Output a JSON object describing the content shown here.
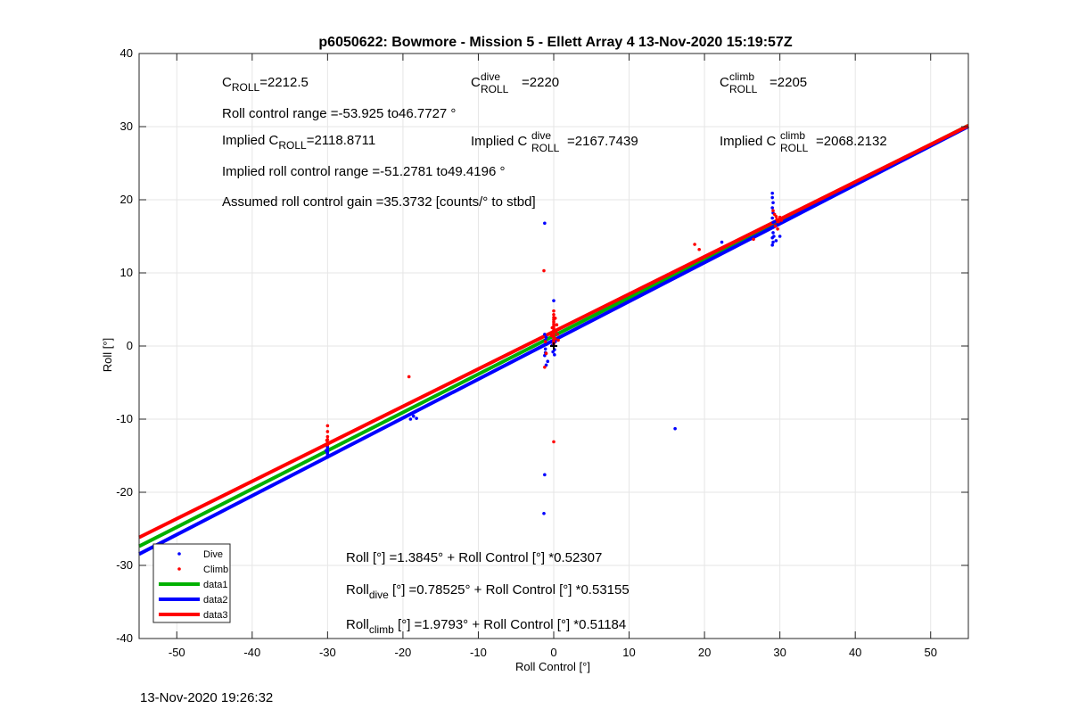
{
  "timestamp": "13-Nov-2020 19:26:32",
  "colors": {
    "dive": "#0000ff",
    "climb": "#ff0000",
    "data1": "#00b000",
    "data2": "#0000ff",
    "data3": "#ff0000",
    "grid": "#e6e6e6"
  },
  "annotations": {
    "c_roll": {
      "main": "C",
      "sub": "ROLL",
      "value": "=2212.5"
    },
    "c_roll_dive": {
      "main": "C",
      "sup": "dive",
      "sub": "ROLL",
      "value": "=2220"
    },
    "c_roll_climb": {
      "main": "C",
      "sup": "climb",
      "sub": "ROLL",
      "value": "=2205"
    },
    "roll_control_range": "Roll control range =-53.925 to46.7727 °",
    "implied_c_roll": {
      "prefix": "Implied C",
      "sub": "ROLL",
      "value": "=2118.8711"
    },
    "implied_c_roll_dive": {
      "prefix": "Implied C",
      "sup": "dive",
      "sub": "ROLL",
      "value": "=2167.7439"
    },
    "implied_c_roll_climb": {
      "prefix": "Implied C",
      "sup": "climb",
      "sub": "ROLL",
      "value": "=2068.2132"
    },
    "implied_range": "Implied roll control range =-51.2781 to49.4196 °",
    "gain": "Assumed roll control gain =35.3732 [counts/° to stbd]",
    "fit_all": "Roll [°] =1.3845° + Roll Control [°] *0.52307",
    "fit_dive": {
      "main": "Roll",
      "sub": "dive",
      "rest": " [°] =0.78525° + Roll Control [°] *0.53155"
    },
    "fit_climb": {
      "main": "Roll",
      "sub": "climb",
      "rest": " [°] =1.9793° + Roll Control [°] *0.51184"
    }
  },
  "chart_data": {
    "type": "scatter",
    "title": "p6050622: Bowmore - Mission 5 - Ellett Array 4 13-Nov-2020 15:19:57Z",
    "xlabel": "Roll Control [°]",
    "ylabel": "Roll [°]",
    "xlim": [
      -55,
      55
    ],
    "ylim": [
      -40,
      40
    ],
    "xticks": [
      -50,
      -40,
      -30,
      -20,
      -10,
      0,
      10,
      20,
      30,
      40,
      50
    ],
    "yticks": [
      -40,
      -30,
      -20,
      -10,
      0,
      10,
      20,
      30,
      40
    ],
    "grid": true,
    "legend_position": "bottom-left",
    "series": [
      {
        "name": "Dive",
        "kind": "points",
        "color": "#0000ff",
        "points": [
          [
            -30,
            -14.2
          ],
          [
            -30,
            -14.5
          ],
          [
            -30,
            -14.8
          ],
          [
            -30,
            -15.0
          ],
          [
            -30,
            -14.0
          ],
          [
            -30,
            -13.8
          ],
          [
            -30,
            -14.6
          ],
          [
            -30,
            -15.2
          ],
          [
            -30.2,
            -14.3
          ],
          [
            -19,
            -10.0
          ],
          [
            -18.2,
            -9.9
          ],
          [
            -18.6,
            -9.6
          ],
          [
            -1.2,
            16.8
          ],
          [
            -1.2,
            -17.6
          ],
          [
            -1.3,
            -22.9
          ],
          [
            -1.2,
            1.6
          ],
          [
            -1.1,
            0.8
          ],
          [
            -1.0,
            0.2
          ],
          [
            -1.1,
            -0.4
          ],
          [
            -1.2,
            -1.3
          ],
          [
            -1.0,
            -2.6
          ],
          [
            -0.8,
            -2.1
          ],
          [
            -1.1,
            -0.9
          ],
          [
            -1.0,
            1.2
          ],
          [
            0.0,
            6.2
          ],
          [
            0.1,
            -0.5
          ],
          [
            0.0,
            0.3
          ],
          [
            -0.1,
            -0.8
          ],
          [
            0.2,
            0.6
          ],
          [
            -0.2,
            0.1
          ],
          [
            0.1,
            -1.2
          ],
          [
            0.3,
            0.9
          ],
          [
            16.1,
            -11.3
          ],
          [
            22.3,
            14.2
          ],
          [
            29.0,
            20.9
          ],
          [
            29.0,
            20.3
          ],
          [
            29.1,
            19.6
          ],
          [
            29.0,
            18.9
          ],
          [
            29.1,
            18.2
          ],
          [
            29.0,
            17.5
          ],
          [
            29.1,
            16.9
          ],
          [
            29.0,
            16.2
          ],
          [
            29.1,
            15.5
          ],
          [
            29.0,
            14.8
          ],
          [
            29.1,
            14.2
          ],
          [
            29.0,
            13.8
          ],
          [
            29.2,
            15.0
          ],
          [
            29.3,
            17.0
          ],
          [
            29.5,
            14.4
          ],
          [
            30.0,
            15.0
          ]
        ]
      },
      {
        "name": "Climb",
        "kind": "points",
        "color": "#ff0000",
        "points": [
          [
            -30,
            -10.9
          ],
          [
            -30,
            -11.7
          ],
          [
            -30,
            -12.4
          ],
          [
            -30,
            -12.8
          ],
          [
            -30,
            -13.2
          ],
          [
            -30,
            -13.5
          ],
          [
            -30.1,
            -12.9
          ],
          [
            -19.2,
            -4.2
          ],
          [
            -1.3,
            10.3
          ],
          [
            -1.2,
            -2.9
          ],
          [
            -1.0,
            -1.0
          ],
          [
            -1.1,
            0.6
          ],
          [
            0.0,
            -13.1
          ],
          [
            0.0,
            4.8
          ],
          [
            0.0,
            4.3
          ],
          [
            0.0,
            3.9
          ],
          [
            0.0,
            3.6
          ],
          [
            0.0,
            3.3
          ],
          [
            0.0,
            3.0
          ],
          [
            0.0,
            2.7
          ],
          [
            0.0,
            2.4
          ],
          [
            0.0,
            2.1
          ],
          [
            0.0,
            1.8
          ],
          [
            0.0,
            1.5
          ],
          [
            0.0,
            1.2
          ],
          [
            0.0,
            0.9
          ],
          [
            0.0,
            0.6
          ],
          [
            0.0,
            0.3
          ],
          [
            0.2,
            3.8
          ],
          [
            0.4,
            2.9
          ],
          [
            0.3,
            2.0
          ],
          [
            0.5,
            1.6
          ],
          [
            -0.2,
            2.5
          ],
          [
            0.2,
            1.0
          ],
          [
            -0.3,
            1.4
          ],
          [
            0.6,
            0.8
          ],
          [
            18.7,
            13.9
          ],
          [
            19.3,
            13.2
          ],
          [
            26.5,
            14.6
          ],
          [
            29.1,
            18.5
          ],
          [
            29.3,
            18.0
          ],
          [
            29.5,
            17.7
          ],
          [
            29.6,
            17.3
          ],
          [
            29.8,
            17.0
          ],
          [
            30.0,
            17.6
          ],
          [
            29.4,
            16.4
          ],
          [
            29.7,
            16.0
          ],
          [
            30.2,
            17.2
          ]
        ]
      },
      {
        "name": "data1",
        "kind": "line",
        "color": "#00b000",
        "intercept": 1.3845,
        "slope": 0.52307
      },
      {
        "name": "data2",
        "kind": "line",
        "color": "#0000ff",
        "intercept": 0.78525,
        "slope": 0.53155
      },
      {
        "name": "data3",
        "kind": "line",
        "color": "#ff0000",
        "intercept": 1.9793,
        "slope": 0.51184
      }
    ]
  }
}
